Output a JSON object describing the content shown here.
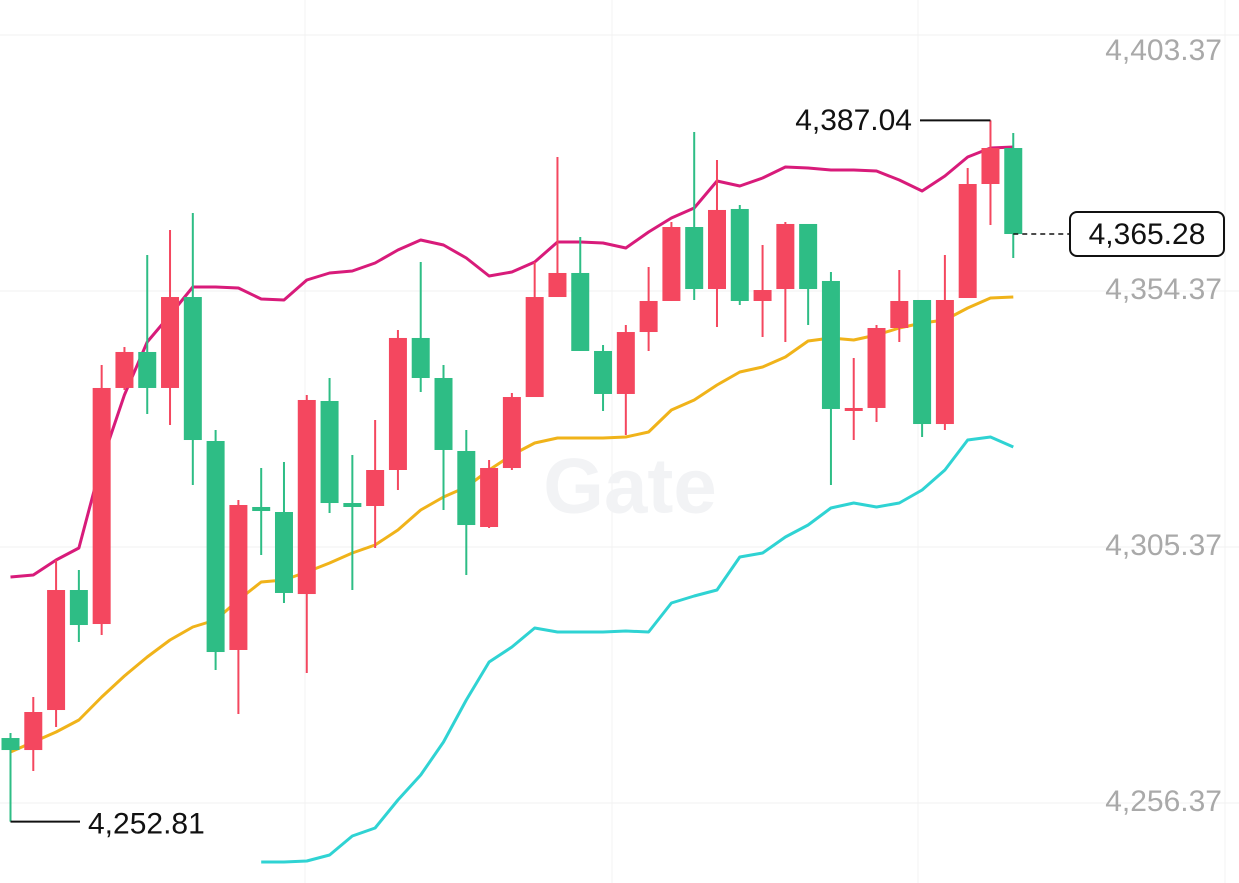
{
  "chart_data": {
    "type": "candlestick",
    "watermark": "Gate",
    "up_color": "#f4475f",
    "down_color": "#2ebd85",
    "ylim": [
      4241.06,
      4410.07
    ],
    "yticks": [
      {
        "value": 4256.37,
        "label": "4,256.37"
      },
      {
        "value": 4305.37,
        "label": "4,305.37"
      },
      {
        "value": 4354.37,
        "label": "4,354.37"
      },
      {
        "value": 4403.37,
        "label": "4,403.37"
      }
    ],
    "grid": true,
    "open": [
      4268.81,
      4266.51,
      4274.17,
      4297.14,
      4290.63,
      4335.81,
      4342.7,
      4335.81,
      4353.22,
      4325.66,
      4285.66,
      4313.03,
      4312.07,
      4296.37,
      4333.32,
      4313.79,
      4313.22,
      4320.11,
      4345.38,
      4337.72,
      4323.75,
      4309.2,
      4320.49,
      4334.08,
      4353.22,
      4357.82,
      4342.89,
      4334.66,
      4346.52,
      4352.46,
      4366.62,
      4354.75,
      4370.07,
      4352.46,
      4354.75,
      4367.2,
      4356.29,
      4331.59,
      4331.98,
      4347.29,
      4352.65,
      4328.91,
      4353.03,
      4374.85,
      4381.74
    ],
    "high": [
      4269.77,
      4276.66,
      4302.88,
      4300.97,
      4340.21,
      4343.65,
      4361.26,
      4366.05,
      4369.3,
      4327.77,
      4314.37,
      4320.49,
      4321.64,
      4334.47,
      4337.72,
      4322.98,
      4329.68,
      4346.91,
      4359.92,
      4340.21,
      4327.77,
      4322.02,
      4334.85,
      4359.92,
      4380.02,
      4364.71,
      4344.04,
      4347.86,
      4358.97,
      4367.58,
      4384.81,
      4379.45,
      4370.83,
      4363.18,
      4367.58,
      4367.2,
      4358.01,
      4341.55,
      4347.86,
      4358.39,
      4352.65,
      4361.26,
      4377.92,
      4387.04,
      4384.61
    ],
    "low": [
      4252.81,
      4262.5,
      4270.92,
      4287.19,
      4288.53,
      4335.42,
      4330.83,
      4328.72,
      4317.24,
      4281.83,
      4273.41,
      4303.84,
      4294.65,
      4281.25,
      4311.88,
      4297.14,
      4305.18,
      4316.28,
      4335.04,
      4312.45,
      4300.01,
      4309.01,
      4320.11,
      4334.08,
      4353.22,
      4342.89,
      4331.4,
      4326.81,
      4342.89,
      4352.46,
      4352.65,
      4347.48,
      4351.69,
      4345.57,
      4344.61,
      4347.86,
      4317.24,
      4325.85,
      4329.3,
      4344.61,
      4326.43,
      4327.77,
      4353.03,
      4367.0,
      4360.69
    ],
    "close": [
      4266.51,
      4273.79,
      4297.14,
      4290.44,
      4335.81,
      4342.7,
      4335.81,
      4353.22,
      4325.85,
      4285.27,
      4313.41,
      4312.26,
      4296.57,
      4333.51,
      4313.79,
      4313.03,
      4320.11,
      4345.38,
      4337.72,
      4323.94,
      4309.58,
      4320.49,
      4334.08,
      4353.22,
      4357.82,
      4342.89,
      4334.66,
      4346.52,
      4352.46,
      4366.62,
      4354.75,
      4369.88,
      4352.46,
      4354.56,
      4367.2,
      4354.75,
      4331.79,
      4331.98,
      4347.29,
      4352.46,
      4328.91,
      4352.65,
      4374.85,
      4381.74,
      4365.28
    ],
    "overlays": [
      {
        "color": "#d81b7a",
        "values": [
          4299.63,
          4300.01,
          4302.88,
          4305.18,
          4321.64,
          4334.47,
          4344.61,
          4349.78,
          4355.14,
          4355.14,
          4354.95,
          4352.84,
          4352.65,
          4356.48,
          4357.82,
          4358.2,
          4359.73,
          4362.22,
          4364.13,
          4363.18,
          4360.69,
          4357.24,
          4358.01,
          4359.92,
          4363.75,
          4363.75,
          4363.56,
          4362.6,
          4365.67,
          4368.34,
          4370.26,
          4375.43,
          4374.47,
          4376.0,
          4378.11,
          4377.92,
          4377.53,
          4377.53,
          4377.34,
          4375.62,
          4373.51,
          4376.38,
          4380.02,
          4381.74,
          4381.93
        ]
      },
      {
        "color": "#f0b31a",
        "values": [
          4266.13,
          4268.05,
          4269.96,
          4272.26,
          4276.66,
          4280.68,
          4284.32,
          4287.57,
          4290.06,
          4291.4,
          4295.23,
          4298.67,
          4299.05,
          4300.59,
          4302.31,
          4304.22,
          4305.75,
          4308.63,
          4312.45,
          4314.94,
          4316.86,
          4320.11,
          4322.98,
          4325.28,
          4326.23,
          4326.23,
          4326.23,
          4326.43,
          4327.38,
          4331.59,
          4333.51,
          4336.38,
          4338.87,
          4339.82,
          4341.74,
          4344.8,
          4345.38,
          4344.99,
          4345.95,
          4347.29,
          4348.25,
          4348.82,
          4351.12,
          4353.03,
          4353.22
        ]
      },
      {
        "color": "#2fd3d3",
        "values": [
          null,
          null,
          null,
          null,
          null,
          null,
          null,
          null,
          null,
          null,
          null,
          4245.08,
          4245.08,
          4245.27,
          4246.42,
          4250.05,
          4251.58,
          4256.94,
          4261.73,
          4268.05,
          4276.09,
          4283.36,
          4286.23,
          4289.87,
          4289.1,
          4289.1,
          4289.1,
          4289.29,
          4289.1,
          4294.65,
          4295.99,
          4297.14,
          4303.46,
          4304.22,
          4307.29,
          4309.58,
          4312.84,
          4313.79,
          4313.03,
          4313.79,
          4316.28,
          4320.11,
          4325.85,
          4326.43,
          4324.51
        ]
      }
    ],
    "annotations": {
      "max": {
        "value": 4387.04,
        "label": "4,387.04"
      },
      "min": {
        "value": 4252.81,
        "label": "4,252.81"
      },
      "last": {
        "value": 4365.28,
        "label": "4,365.28"
      }
    }
  }
}
